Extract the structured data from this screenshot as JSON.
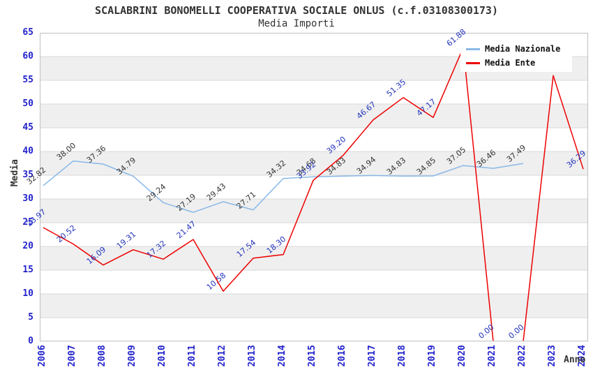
{
  "header": {
    "title": "SCALABRINI BONOMELLI COOPERATIVA SOCIALE ONLUS (c.f.03108300173)",
    "subtitle": "Media Importi"
  },
  "chart_data": {
    "type": "line",
    "title": "SCALABRINI BONOMELLI COOPERATIVA SOCIALE ONLUS (c.f.03108300173)",
    "subtitle": "Media Importi",
    "x_axis_label": "Anno",
    "y_axis_label": "Media",
    "categories": [
      "2006",
      "2007",
      "2008",
      "2009",
      "2010",
      "2011",
      "2012",
      "2013",
      "2014",
      "2015",
      "2016",
      "2017",
      "2018",
      "2019",
      "2020",
      "2021",
      "2022",
      "2023",
      "2024"
    ],
    "ylim": [
      0,
      65
    ],
    "y_ticks": [
      0,
      5,
      10,
      15,
      20,
      25,
      30,
      35,
      40,
      45,
      50,
      55,
      60,
      65
    ],
    "grid": "horizontal gridlines with alternating gray bands",
    "legend_position": "top-right",
    "series": [
      {
        "name": "Media Nazionale",
        "color": "#88b8e8",
        "label_color": "#333333",
        "values": [
          32.82,
          38.0,
          37.36,
          34.79,
          29.24,
          27.19,
          29.43,
          27.71,
          34.32,
          34.68,
          34.83,
          34.94,
          34.83,
          34.85,
          37.05,
          36.46,
          37.49
        ],
        "labels": [
          "32.82",
          "38.00",
          "37.36",
          "34.79",
          "29.24",
          "27.19",
          "29.43",
          "27.71",
          "34.32",
          "34.68",
          "34.83",
          "34.94",
          "34.83",
          "34.85",
          "37.05",
          "36.46",
          "37.49"
        ]
      },
      {
        "name": "Media Ente",
        "color": "#ee0000",
        "label_color": "#2233bb",
        "values": [
          23.97,
          20.52,
          16.09,
          19.31,
          17.32,
          21.47,
          10.58,
          17.54,
          18.3,
          33.92,
          39.2,
          46.67,
          51.35,
          47.17,
          61.88,
          0.0,
          0.0,
          56.0,
          36.29
        ],
        "labels": [
          "23.97",
          "20.52",
          "16.09",
          "19.31",
          "17.32",
          "21.47",
          "10.58",
          "17.54",
          "18.30",
          "33.92",
          "39.20",
          "46.67",
          "51.35",
          "47.17",
          "61.88",
          "0.00",
          "0.00",
          "",
          "36.29"
        ]
      }
    ]
  },
  "colors": {
    "tick_label": "#2222cc",
    "band_gray": "#efefef",
    "gridline": "#d9d9d9",
    "plot_border": "#c0c0c0",
    "text": "#333333",
    "background": "#ffffff"
  }
}
